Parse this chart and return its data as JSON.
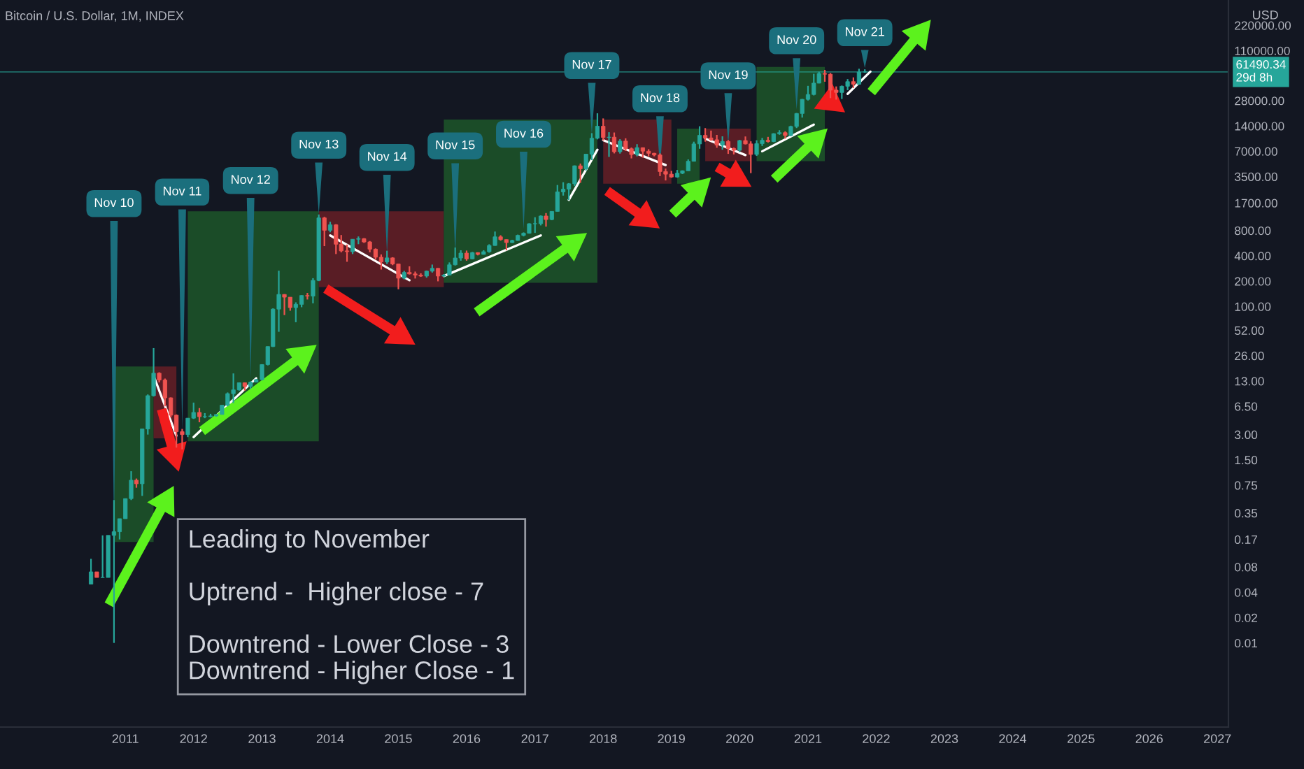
{
  "chart_data": {
    "type": "candlestick",
    "title": "Bitcoin / U.S. Dollar, 1M, INDEX",
    "ylabel": "USD",
    "log": true,
    "grid": false,
    "legend": false,
    "x": [
      "2010-07",
      "2010-08",
      "2010-09",
      "2010-10",
      "2010-11",
      "2010-12",
      "2011-01",
      "2011-02",
      "2011-03",
      "2011-04",
      "2011-05",
      "2011-06",
      "2011-07",
      "2011-08",
      "2011-09",
      "2011-10",
      "2011-11",
      "2011-12",
      "2012-01",
      "2012-02",
      "2012-03",
      "2012-04",
      "2012-05",
      "2012-06",
      "2012-07",
      "2012-08",
      "2012-09",
      "2012-10",
      "2012-11",
      "2012-12",
      "2013-01",
      "2013-02",
      "2013-03",
      "2013-04",
      "2013-05",
      "2013-06",
      "2013-07",
      "2013-08",
      "2013-09",
      "2013-10",
      "2013-11",
      "2013-12",
      "2014-01",
      "2014-02",
      "2014-03",
      "2014-04",
      "2014-05",
      "2014-06",
      "2014-07",
      "2014-08",
      "2014-09",
      "2014-10",
      "2014-11",
      "2014-12",
      "2015-01",
      "2015-02",
      "2015-03",
      "2015-04",
      "2015-05",
      "2015-06",
      "2015-07",
      "2015-08",
      "2015-09",
      "2015-10",
      "2015-11",
      "2015-12",
      "2016-01",
      "2016-02",
      "2016-03",
      "2016-04",
      "2016-05",
      "2016-06",
      "2016-07",
      "2016-08",
      "2016-09",
      "2016-10",
      "2016-11",
      "2016-12",
      "2017-01",
      "2017-02",
      "2017-03",
      "2017-04",
      "2017-05",
      "2017-06",
      "2017-07",
      "2017-08",
      "2017-09",
      "2017-10",
      "2017-11",
      "2017-12",
      "2018-01",
      "2018-02",
      "2018-03",
      "2018-04",
      "2018-05",
      "2018-06",
      "2018-07",
      "2018-08",
      "2018-09",
      "2018-10",
      "2018-11",
      "2018-12",
      "2019-01",
      "2019-02",
      "2019-03",
      "2019-04",
      "2019-05",
      "2019-06",
      "2019-07",
      "2019-08",
      "2019-09",
      "2019-10",
      "2019-11",
      "2019-12",
      "2020-01",
      "2020-02",
      "2020-03",
      "2020-04",
      "2020-05",
      "2020-06",
      "2020-07",
      "2020-08",
      "2020-09",
      "2020-10",
      "2020-11",
      "2020-12",
      "2021-01",
      "2021-02",
      "2021-03",
      "2021-04",
      "2021-05",
      "2021-06",
      "2021-07",
      "2021-08",
      "2021-09",
      "2021-10",
      "2021-11"
    ],
    "ohlc": [
      [
        0.05,
        0.1,
        0.05,
        0.07
      ],
      [
        0.07,
        0.07,
        0.06,
        0.06
      ],
      [
        0.06,
        0.19,
        0.06,
        0.06
      ],
      [
        0.06,
        0.19,
        0.06,
        0.19
      ],
      [
        0.19,
        0.5,
        0.01,
        0.21
      ],
      [
        0.21,
        0.3,
        0.17,
        0.3
      ],
      [
        0.3,
        0.52,
        0.3,
        0.52
      ],
      [
        0.52,
        1.1,
        0.5,
        0.86
      ],
      [
        0.86,
        0.9,
        0.7,
        0.78
      ],
      [
        0.78,
        3.5,
        0.56,
        3.5
      ],
      [
        3.5,
        9,
        3,
        8.7
      ],
      [
        8.7,
        32,
        8.5,
        16.1
      ],
      [
        16.1,
        16.5,
        12.5,
        13.35
      ],
      [
        13.35,
        13.9,
        6.5,
        8.2
      ],
      [
        8.2,
        8.3,
        4.8,
        5.1
      ],
      [
        5.1,
        5.2,
        2.1,
        3.25
      ],
      [
        3.25,
        3.5,
        2,
        3
      ],
      [
        3,
        4.7,
        2.8,
        4.7
      ],
      [
        4.7,
        7.2,
        4.6,
        5.5
      ],
      [
        5.5,
        6.2,
        4.2,
        4.9
      ],
      [
        4.9,
        5.4,
        4.7,
        4.9
      ],
      [
        4.9,
        5.3,
        4.8,
        5
      ],
      [
        5,
        5.2,
        4.9,
        5.2
      ],
      [
        5.2,
        6.7,
        5.2,
        6.7
      ],
      [
        6.7,
        9.5,
        6.5,
        9.2
      ],
      [
        9.2,
        16,
        7.1,
        10.2
      ],
      [
        10.2,
        12.5,
        10,
        12.4
      ],
      [
        12.4,
        12.5,
        10,
        11.2
      ],
      [
        11.2,
        12.9,
        10.5,
        12.6
      ],
      [
        12.6,
        13.7,
        12.6,
        13.5
      ],
      [
        13.5,
        20.6,
        13.2,
        20.4
      ],
      [
        20.4,
        33.4,
        19.9,
        33.4
      ],
      [
        33.4,
        95,
        33,
        93
      ],
      [
        93,
        266,
        50,
        139
      ],
      [
        139,
        140,
        79,
        129
      ],
      [
        129,
        129,
        89,
        97
      ],
      [
        97,
        112,
        65,
        106
      ],
      [
        106,
        136,
        98,
        135
      ],
      [
        135,
        145,
        121,
        133
      ],
      [
        133,
        217,
        109,
        204
      ],
      [
        204,
        1241,
        200,
        1130
      ],
      [
        1130,
        1163,
        522,
        805
      ],
      [
        805,
        1017,
        762,
        935
      ],
      [
        935,
        952,
        420,
        550
      ],
      [
        550,
        707,
        440,
        458
      ],
      [
        458,
        545,
        340,
        448
      ],
      [
        448,
        630,
        420,
        630
      ],
      [
        630,
        680,
        550,
        640
      ],
      [
        640,
        650,
        570,
        585
      ],
      [
        585,
        600,
        440,
        480
      ],
      [
        480,
        490,
        360,
        385
      ],
      [
        385,
        415,
        275,
        338
      ],
      [
        338,
        460,
        320,
        378
      ],
      [
        378,
        385,
        310,
        320
      ],
      [
        320,
        320,
        160,
        217
      ],
      [
        217,
        265,
        210,
        254
      ],
      [
        254,
        300,
        240,
        244
      ],
      [
        244,
        260,
        215,
        236
      ],
      [
        236,
        248,
        225,
        230
      ],
      [
        230,
        267,
        220,
        263
      ],
      [
        263,
        315,
        253,
        284
      ],
      [
        284,
        286,
        199,
        230
      ],
      [
        230,
        243,
        225,
        236
      ],
      [
        236,
        334,
        235,
        313
      ],
      [
        313,
        502,
        307,
        377
      ],
      [
        377,
        466,
        350,
        431
      ],
      [
        431,
        462,
        350,
        368
      ],
      [
        368,
        445,
        365,
        437
      ],
      [
        437,
        440,
        405,
        416
      ],
      [
        416,
        466,
        414,
        448
      ],
      [
        448,
        549,
        436,
        531
      ],
      [
        531,
        778,
        527,
        673
      ],
      [
        673,
        703,
        606,
        624
      ],
      [
        624,
        626,
        465,
        575
      ],
      [
        575,
        620,
        570,
        609
      ],
      [
        609,
        715,
        605,
        700
      ],
      [
        700,
        760,
        681,
        742
      ],
      [
        742,
        975,
        735,
        963
      ],
      [
        963,
        1150,
        750,
        965
      ],
      [
        965,
        1210,
        920,
        1190
      ],
      [
        1190,
        1290,
        890,
        1080
      ],
      [
        1080,
        1350,
        1060,
        1350
      ],
      [
        1350,
        2780,
        1350,
        2300
      ],
      [
        2300,
        3000,
        2080,
        2480
      ],
      [
        2480,
        2930,
        1840,
        2875
      ],
      [
        2875,
        4750,
        2700,
        4700
      ],
      [
        4700,
        5000,
        2950,
        4340
      ],
      [
        4340,
        6470,
        4140,
        6470
      ],
      [
        6470,
        11500,
        5500,
        10000
      ],
      [
        10000,
        19800,
        9700,
        13900
      ],
      [
        13900,
        17200,
        9400,
        10200
      ],
      [
        10200,
        11800,
        6000,
        10300
      ],
      [
        10300,
        11700,
        6600,
        6920
      ],
      [
        6920,
        9750,
        6570,
        9240
      ],
      [
        9240,
        9980,
        7050,
        7500
      ],
      [
        7500,
        7760,
        5760,
        6400
      ],
      [
        6400,
        8500,
        6100,
        7730
      ],
      [
        7730,
        7760,
        5880,
        7020
      ],
      [
        7020,
        7410,
        6100,
        6620
      ],
      [
        6620,
        6700,
        6100,
        6320
      ],
      [
        6320,
        6600,
        3550,
        4020
      ],
      [
        4020,
        4360,
        3150,
        3740
      ],
      [
        3740,
        4090,
        3390,
        3460
      ],
      [
        3460,
        4200,
        3400,
        3840
      ],
      [
        3840,
        4150,
        3750,
        4100
      ],
      [
        4100,
        5600,
        4100,
        5320
      ],
      [
        5320,
        9100,
        5300,
        8560
      ],
      [
        8560,
        13880,
        7500,
        10820
      ],
      [
        10820,
        13200,
        9100,
        10080
      ],
      [
        10080,
        12330,
        9330,
        9590
      ],
      [
        9590,
        10950,
        7710,
        8290
      ],
      [
        8290,
        10540,
        7300,
        9150
      ],
      [
        9150,
        9510,
        6520,
        7550
      ],
      [
        7550,
        7750,
        6430,
        7190
      ],
      [
        7190,
        9570,
        6870,
        9380
      ],
      [
        9380,
        10500,
        8440,
        8560
      ],
      [
        8560,
        9190,
        3850,
        6420
      ],
      [
        6420,
        9460,
        6160,
        8630
      ],
      [
        8630,
        10080,
        8100,
        9450
      ],
      [
        9450,
        10380,
        8900,
        9140
      ],
      [
        9140,
        11460,
        8980,
        11340
      ],
      [
        11340,
        12470,
        10990,
        11650
      ],
      [
        11650,
        12090,
        9880,
        10780
      ],
      [
        10780,
        14100,
        10540,
        13800
      ],
      [
        13800,
        19950,
        13200,
        19700
      ],
      [
        19700,
        29300,
        17600,
        28990
      ],
      [
        28990,
        41950,
        28100,
        33100
      ],
      [
        33100,
        58350,
        32300,
        45200
      ],
      [
        45200,
        61800,
        44950,
        58800
      ],
      [
        58800,
        64900,
        47000,
        57700
      ],
      [
        57700,
        59600,
        30000,
        37300
      ],
      [
        37300,
        41300,
        28800,
        35000
      ],
      [
        35000,
        42300,
        29300,
        41500
      ],
      [
        41500,
        50500,
        37300,
        47100
      ],
      [
        47100,
        52900,
        39600,
        43800
      ],
      [
        43800,
        67000,
        43300,
        61300
      ],
      [
        61300,
        66000,
        60000,
        61490.34
      ]
    ],
    "series": [
      {
        "type": "line",
        "color": "#ffffff",
        "x": [
          "2011-06",
          "2011-10"
        ],
        "values": [
          15,
          2.9
        ]
      },
      {
        "type": "line",
        "color": "#ffffff",
        "x": [
          "2012-01",
          "2012-12"
        ],
        "values": [
          2.8,
          14
        ]
      },
      {
        "type": "line",
        "color": "#ffffff",
        "x": [
          "2014-01",
          "2015-03"
        ],
        "values": [
          700,
          205
        ]
      },
      {
        "type": "line",
        "color": "#ffffff",
        "x": [
          "2015-09",
          "2017-02"
        ],
        "values": [
          230,
          700
        ]
      },
      {
        "type": "line",
        "color": "#ffffff",
        "x": [
          "2017-07",
          "2017-12"
        ],
        "values": [
          1850,
          7300
        ]
      },
      {
        "type": "line",
        "color": "#ffffff",
        "x": [
          "2018-01",
          "2018-12"
        ],
        "values": [
          9500,
          4800
        ]
      },
      {
        "type": "line",
        "color": "#ffffff",
        "x": [
          "2019-07",
          "2020-02"
        ],
        "values": [
          9900,
          6300
        ]
      },
      {
        "type": "line",
        "color": "#ffffff",
        "x": [
          "2020-05",
          "2021-02"
        ],
        "values": [
          7000,
          14500
        ]
      },
      {
        "type": "line",
        "color": "#ffffff",
        "x": [
          "2021-08",
          "2021-12"
        ],
        "values": [
          33700,
          62000
        ]
      }
    ],
    "bands": [
      {
        "axis": "x",
        "from": "2010-11",
        "to": "2011-06",
        "color": "#1e5a2a"
      },
      {
        "axis": "x",
        "from": "2011-06",
        "to": "2011-10",
        "color": "#6b1f27"
      },
      {
        "axis": "x",
        "from": "2011-12",
        "to": "2013-11",
        "color": "#1e5a2a"
      },
      {
        "axis": "x",
        "from": "2013-11",
        "to": "2015-09",
        "color": "#6b1f27"
      },
      {
        "axis": "x",
        "from": "2015-09",
        "to": "2017-12",
        "color": "#1e5a2a"
      },
      {
        "axis": "x",
        "from": "2018-01",
        "to": "2019-01",
        "color": "#6b1f27"
      },
      {
        "axis": "x",
        "from": "2019-02",
        "to": "2019-06",
        "color": "#1e5a2a"
      },
      {
        "axis": "x",
        "from": "2019-07",
        "to": "2020-03",
        "color": "#6b1f27"
      },
      {
        "axis": "x",
        "from": "2020-04",
        "to": "2021-04",
        "color": "#1e5a2a"
      }
    ],
    "ref_lines": [
      {
        "axis": "y",
        "value": 61490.34,
        "label": "61490.34\n29d 8h",
        "color": "#26a69a"
      }
    ],
    "annotations": [
      {
        "text": "Nov 10",
        "x": "2010-11",
        "y": 0.21
      },
      {
        "text": "Nov 11",
        "x": "2011-11",
        "y": 3
      },
      {
        "text": "Nov 12",
        "x": "2012-11",
        "y": 12.6
      },
      {
        "text": "Nov 13",
        "x": "2013-11",
        "y": 1130
      },
      {
        "text": "Nov 14",
        "x": "2014-11",
        "y": 378
      },
      {
        "text": "Nov 15",
        "x": "2015-11",
        "y": 377
      },
      {
        "text": "Nov 16",
        "x": "2016-11",
        "y": 742
      },
      {
        "text": "Nov 17",
        "x": "2017-11",
        "y": 10000
      },
      {
        "text": "Nov 18",
        "x": "2018-11",
        "y": 4020
      },
      {
        "text": "Nov 19",
        "x": "2019-11",
        "y": 7550
      },
      {
        "text": "Nov 20",
        "x": "2020-11",
        "y": 19700
      },
      {
        "text": "Nov 21",
        "x": "2021-11",
        "y": 61490.34
      },
      "Leading to November\n\nUptrend -  Higher close - 7\n\nDowntrend - Lower Close - 3\nDowntrend - Higher Close - 1"
    ],
    "xlim": [
      "2009-03",
      "2027-03"
    ],
    "xticks": [
      "2011",
      "2012",
      "2013",
      "2014",
      "2015",
      "2016",
      "2017",
      "2018",
      "2019",
      "2020",
      "2021",
      "2022",
      "2023",
      "2024",
      "2025",
      "2026",
      "2027"
    ],
    "ylim": [
      0.001,
      440000
    ],
    "yticks": [
      {
        "value": 0.01,
        "label": "0.01"
      },
      {
        "value": 0.02,
        "label": "0.02"
      },
      {
        "value": 0.04,
        "label": "0.04"
      },
      {
        "value": 0.08,
        "label": "0.08"
      },
      {
        "value": 0.17,
        "label": "0.17"
      },
      {
        "value": 0.35,
        "label": "0.35"
      },
      {
        "value": 0.75,
        "label": "0.75"
      },
      {
        "value": 1.5,
        "label": "1.50"
      },
      {
        "value": 3,
        "label": "3.00"
      },
      {
        "value": 6.5,
        "label": "6.50"
      },
      {
        "value": 13,
        "label": "13.00"
      },
      {
        "value": 26,
        "label": "26.00"
      },
      {
        "value": 52,
        "label": "52.00"
      },
      {
        "value": 100,
        "label": "100.00"
      },
      {
        "value": 200,
        "label": "200.00"
      },
      {
        "value": 400,
        "label": "400.00"
      },
      {
        "value": 800,
        "label": "800.00"
      },
      {
        "value": 1700,
        "label": "1700.00"
      },
      {
        "value": 3500,
        "label": "3500.00"
      },
      {
        "value": 7000,
        "label": "7000.00"
      },
      {
        "value": 14000,
        "label": "14000.00"
      },
      {
        "value": 28000,
        "label": "28000.00"
      },
      {
        "value": 110000,
        "label": "110000.00"
      },
      {
        "value": 220000,
        "label": "220000.00"
      }
    ]
  }
}
